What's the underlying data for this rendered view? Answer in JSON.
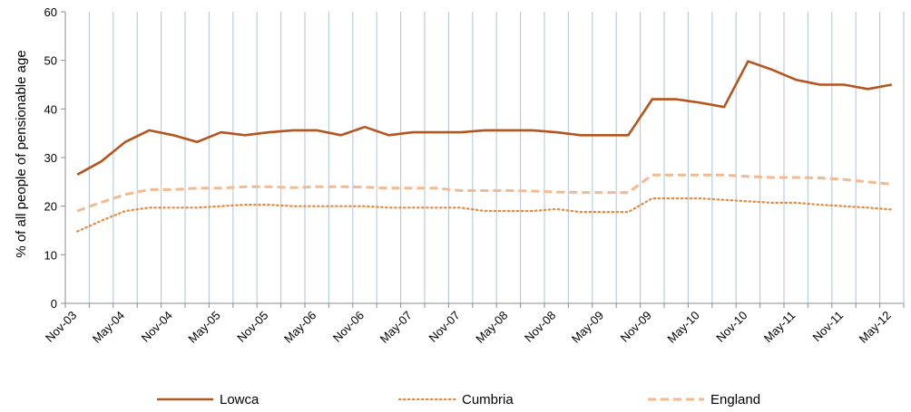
{
  "chart_data": {
    "type": "line",
    "ylabel": "% of all people of pensionable age",
    "xlabel": "",
    "ylim": [
      0,
      60
    ],
    "yticks": [
      0,
      10,
      20,
      30,
      40,
      50,
      60
    ],
    "x_labels": [
      "Nov-03",
      "May-04",
      "Nov-04",
      "May-05",
      "Nov-05",
      "May-06",
      "Nov-06",
      "May-07",
      "Nov-07",
      "May-08",
      "Nov-08",
      "May-09",
      "Nov-09",
      "May-10",
      "Nov-10",
      "May-11",
      "Nov-11",
      "May-12"
    ],
    "gridlines": "vertical",
    "legend_position": "bottom",
    "series": [
      {
        "name": "Lowca",
        "color": "#B5541C",
        "style": "solid",
        "values": [
          26.5,
          29.2,
          33.2,
          35.6,
          34.6,
          33.2,
          35.2,
          34.6,
          35.2,
          35.6,
          35.6,
          34.6,
          36.3,
          34.6,
          35.2,
          35.2,
          35.2,
          35.6,
          35.6,
          35.6,
          35.2,
          34.6,
          34.6,
          34.6,
          42.0,
          42.0,
          41.3,
          40.4,
          49.8,
          48.1,
          46.0,
          45.0,
          45.0,
          44.1,
          45.0
        ]
      },
      {
        "name": "Cumbria",
        "color": "#E8883C",
        "style": "dotted",
        "values": [
          14.8,
          17.0,
          19.0,
          19.7,
          19.7,
          19.7,
          20.0,
          20.3,
          20.3,
          20.0,
          20.0,
          20.0,
          20.0,
          19.7,
          19.7,
          19.7,
          19.7,
          19.0,
          19.0,
          19.0,
          19.4,
          18.8,
          18.8,
          18.8,
          21.6,
          21.6,
          21.6,
          21.3,
          21.0,
          20.7,
          20.7,
          20.3,
          20.0,
          19.7,
          19.3
        ]
      },
      {
        "name": "England",
        "color": "#F5B98E",
        "style": "dashed",
        "values": [
          19.0,
          20.8,
          22.4,
          23.4,
          23.4,
          23.7,
          23.7,
          24.0,
          24.0,
          23.8,
          24.0,
          24.0,
          23.9,
          23.7,
          23.7,
          23.7,
          23.2,
          23.2,
          23.2,
          23.1,
          22.9,
          22.8,
          22.8,
          22.8,
          26.4,
          26.4,
          26.4,
          26.4,
          26.1,
          25.9,
          25.9,
          25.8,
          25.5,
          25.0,
          24.5
        ]
      }
    ]
  }
}
